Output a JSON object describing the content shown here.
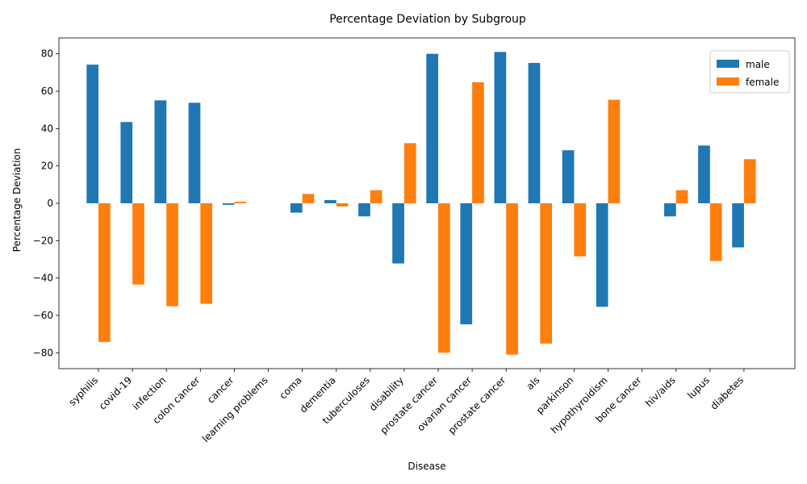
{
  "chart_data": {
    "type": "bar",
    "title": "Percentage Deviation by Subgroup",
    "xlabel": "Disease",
    "ylabel": "Percentage Deviation",
    "ylim": [
      -88.5,
      88.5
    ],
    "yticks": [
      -80,
      -60,
      -40,
      -20,
      0,
      20,
      40,
      60,
      80
    ],
    "grid": false,
    "legend_position": "top-right",
    "categories": [
      "syphilis",
      "covid-19",
      "infection",
      "colon cancer",
      "cancer",
      "learning problems",
      "coma",
      "dementia",
      "tuberculoses",
      "disability",
      "prostate cancer",
      "ovarian cancer",
      "prostate cancer",
      "als",
      "parkinson",
      "hypothyroidism",
      "bone cancer",
      "hiv/aids",
      "lupus",
      "diabetes"
    ],
    "series": [
      {
        "name": "male",
        "color": "#1f77b4",
        "values": [
          74.2,
          43.5,
          55.1,
          53.8,
          -0.8,
          0,
          -5.0,
          1.7,
          -7.0,
          -32.2,
          80.0,
          -64.8,
          81.0,
          75.1,
          28.4,
          -55.4,
          0,
          -7.0,
          30.9,
          -23.6
        ]
      },
      {
        "name": "female",
        "color": "#ff7f0e",
        "values": [
          -74.2,
          -43.5,
          -55.1,
          -53.8,
          0.8,
          0,
          5.0,
          -1.7,
          7.0,
          32.2,
          -80.0,
          64.8,
          -81.0,
          -75.1,
          -28.4,
          55.4,
          0,
          7.0,
          -30.9,
          23.6
        ]
      }
    ]
  }
}
